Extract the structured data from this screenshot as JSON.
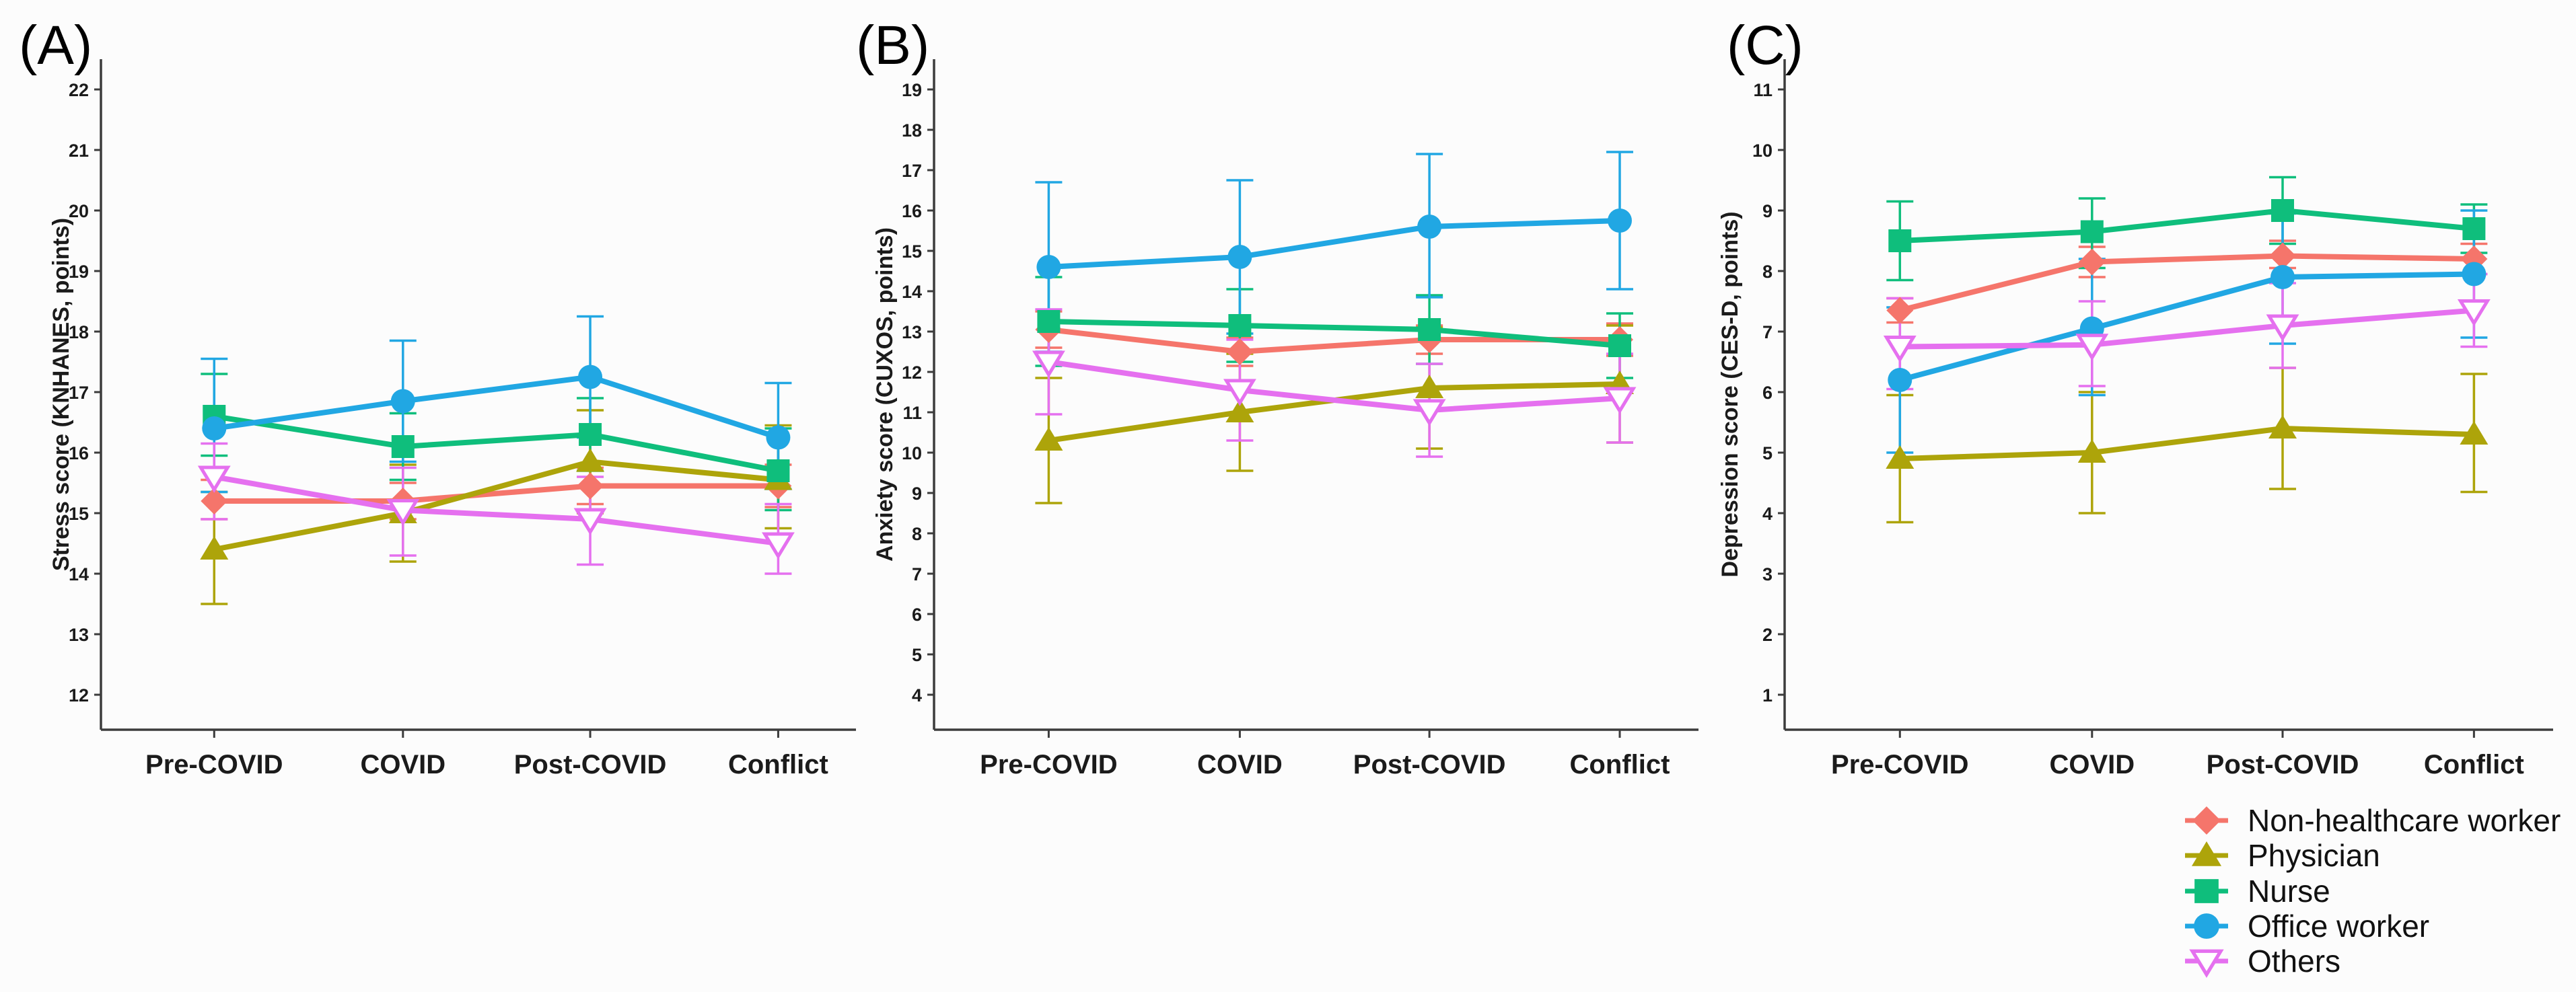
{
  "chart_data": [
    {
      "type": "line",
      "panel_label": "(A)",
      "ylabel": "Stress score (KNHANES, points)",
      "categories": [
        "Pre-COVID",
        "COVID",
        "Post-COVID",
        "Conflict"
      ],
      "yticks": {
        "min": 12,
        "max": 22,
        "step": 1
      },
      "grid": false,
      "error_bars": true,
      "series": [
        {
          "name": "Non-healthcare worker",
          "color": "#F5756B",
          "marker": "diamond",
          "fill": "solid",
          "values": [
            15.2,
            15.2,
            15.45,
            15.45
          ],
          "lower": [
            14.9,
            14.9,
            15.15,
            15.1
          ],
          "upper": [
            15.55,
            15.5,
            15.75,
            15.8
          ]
        },
        {
          "name": "Physician",
          "color": "#ADA40A",
          "marker": "triangle-up",
          "fill": "solid",
          "values": [
            14.4,
            15.0,
            15.85,
            15.55
          ],
          "lower": [
            13.5,
            14.2,
            15.0,
            14.75
          ],
          "upper": [
            15.35,
            15.8,
            16.7,
            16.45
          ]
        },
        {
          "name": "Nurse",
          "color": "#0FBE7C",
          "marker": "square",
          "fill": "solid",
          "values": [
            16.6,
            16.1,
            16.3,
            15.7
          ],
          "lower": [
            15.95,
            15.55,
            15.7,
            15.05
          ],
          "upper": [
            17.3,
            16.65,
            16.9,
            16.4
          ]
        },
        {
          "name": "Office worker",
          "color": "#21A7E3",
          "marker": "circle",
          "fill": "solid",
          "values": [
            16.4,
            16.85,
            17.25,
            16.25
          ],
          "lower": [
            15.35,
            15.85,
            16.25,
            15.4
          ],
          "upper": [
            17.55,
            17.85,
            18.25,
            17.15
          ]
        },
        {
          "name": "Others",
          "color": "#E570EF",
          "marker": "triangle-down",
          "fill": "open",
          "values": [
            15.6,
            15.05,
            14.9,
            14.5
          ],
          "lower": [
            14.9,
            14.3,
            14.15,
            14.0
          ],
          "upper": [
            16.15,
            15.75,
            15.6,
            15.15
          ]
        }
      ]
    },
    {
      "type": "line",
      "panel_label": "(B)",
      "ylabel": "Anxiety score (CUXOS, points)",
      "categories": [
        "Pre-COVID",
        "COVID",
        "Post-COVID",
        "Conflict"
      ],
      "yticks": {
        "min": 4,
        "max": 19,
        "step": 1
      },
      "grid": false,
      "error_bars": true,
      "series": [
        {
          "name": "Non-healthcare worker",
          "color": "#F5756B",
          "marker": "diamond",
          "fill": "solid",
          "values": [
            13.05,
            12.5,
            12.8,
            12.8
          ],
          "lower": [
            12.6,
            12.15,
            12.45,
            12.4
          ],
          "upper": [
            13.5,
            12.85,
            13.15,
            13.2
          ]
        },
        {
          "name": "Physician",
          "color": "#ADA40A",
          "marker": "triangle-up",
          "fill": "solid",
          "values": [
            10.3,
            11.0,
            11.6,
            11.7
          ],
          "lower": [
            8.75,
            9.55,
            10.1,
            10.25
          ],
          "upper": [
            11.85,
            12.45,
            13.1,
            13.15
          ]
        },
        {
          "name": "Nurse",
          "color": "#0FBE7C",
          "marker": "square",
          "fill": "solid",
          "values": [
            13.25,
            13.15,
            13.05,
            12.65
          ],
          "lower": [
            12.15,
            12.25,
            12.2,
            11.85
          ],
          "upper": [
            14.35,
            14.05,
            13.9,
            13.45
          ]
        },
        {
          "name": "Office worker",
          "color": "#21A7E3",
          "marker": "circle",
          "fill": "solid",
          "values": [
            14.6,
            14.85,
            15.6,
            15.75
          ],
          "lower": [
            12.5,
            12.95,
            13.85,
            14.05
          ],
          "upper": [
            16.7,
            16.75,
            17.4,
            17.45
          ]
        },
        {
          "name": "Others",
          "color": "#E570EF",
          "marker": "triangle-down",
          "fill": "open",
          "values": [
            12.25,
            11.55,
            11.05,
            11.35
          ],
          "lower": [
            10.95,
            10.3,
            9.9,
            10.25
          ],
          "upper": [
            13.55,
            12.8,
            12.2,
            12.45
          ]
        }
      ]
    },
    {
      "type": "line",
      "panel_label": "(C)",
      "ylabel": "Depression score (CES-D, points)",
      "categories": [
        "Pre-COVID",
        "COVID",
        "Post-COVID",
        "Conflict"
      ],
      "yticks": {
        "min": 1,
        "max": 11,
        "step": 1
      },
      "grid": false,
      "error_bars": true,
      "series": [
        {
          "name": "Non-healthcare worker",
          "color": "#F5756B",
          "marker": "diamond",
          "fill": "solid",
          "values": [
            7.35,
            8.15,
            8.25,
            8.2
          ],
          "lower": [
            7.15,
            7.9,
            8.05,
            7.95
          ],
          "upper": [
            7.55,
            8.4,
            8.5,
            8.45
          ]
        },
        {
          "name": "Physician",
          "color": "#ADA40A",
          "marker": "triangle-up",
          "fill": "solid",
          "values": [
            4.9,
            5.0,
            5.4,
            5.3
          ],
          "lower": [
            3.85,
            4.0,
            4.4,
            4.35
          ],
          "upper": [
            5.95,
            6.0,
            6.4,
            6.3
          ]
        },
        {
          "name": "Nurse",
          "color": "#0FBE7C",
          "marker": "square",
          "fill": "solid",
          "values": [
            8.5,
            8.65,
            9.0,
            8.7
          ],
          "lower": [
            7.85,
            8.05,
            8.45,
            8.3
          ],
          "upper": [
            9.15,
            9.2,
            9.55,
            9.1
          ]
        },
        {
          "name": "Office worker",
          "color": "#21A7E3",
          "marker": "circle",
          "fill": "solid",
          "values": [
            6.2,
            7.05,
            7.9,
            7.95
          ],
          "lower": [
            5.0,
            5.95,
            6.8,
            6.9
          ],
          "upper": [
            7.4,
            8.2,
            8.95,
            9.0
          ]
        },
        {
          "name": "Others",
          "color": "#E570EF",
          "marker": "triangle-down",
          "fill": "open",
          "values": [
            6.75,
            6.78,
            7.1,
            7.35
          ],
          "lower": [
            6.05,
            6.1,
            6.4,
            6.75
          ],
          "upper": [
            7.55,
            7.5,
            7.8,
            7.95
          ]
        }
      ]
    }
  ],
  "legend": {
    "position": "bottom-right",
    "items": [
      "Non-healthcare worker",
      "Physician",
      "Nurse",
      "Office worker",
      "Others"
    ]
  },
  "colors": {
    "non_healthcare_worker": "#F5756B",
    "physician": "#ADA40A",
    "nurse": "#0FBE7C",
    "office_worker": "#21A7E3",
    "others": "#E570EF",
    "axis": "#3C3C3C",
    "text": "#1B1B1B",
    "background": "#FCFCFC"
  }
}
